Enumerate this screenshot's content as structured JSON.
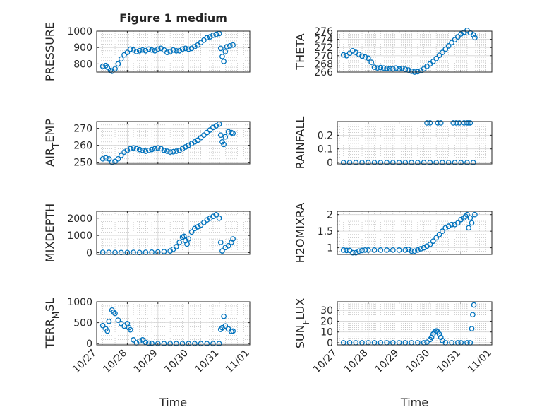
{
  "figure": {
    "title": "Figure 1 medium",
    "colors": {
      "marker": "#0072BD",
      "axis": "#262626",
      "grid": "#b3b3b3",
      "background": "#ffffff"
    }
  },
  "chart_data": [
    {
      "id": "pressure",
      "type": "scatter",
      "title": "Figure 1 medium",
      "ylabel": "PRESSURE",
      "xlabel": "",
      "grid": true,
      "minor_grid": true,
      "x_range": [
        "10/27",
        "11/01"
      ],
      "ylim": [
        750,
        1000
      ],
      "y_ticks": [
        800,
        900,
        1000
      ],
      "x_ticks": [],
      "points": [
        [
          27.2,
          785
        ],
        [
          27.3,
          790
        ],
        [
          27.35,
          780
        ],
        [
          27.45,
          760
        ],
        [
          27.5,
          755
        ],
        [
          27.6,
          770
        ],
        [
          27.7,
          800
        ],
        [
          27.8,
          830
        ],
        [
          27.9,
          855
        ],
        [
          28.0,
          870
        ],
        [
          28.1,
          890
        ],
        [
          28.2,
          885
        ],
        [
          28.3,
          875
        ],
        [
          28.4,
          880
        ],
        [
          28.5,
          885
        ],
        [
          28.6,
          880
        ],
        [
          28.7,
          890
        ],
        [
          28.8,
          885
        ],
        [
          28.9,
          880
        ],
        [
          29.0,
          890
        ],
        [
          29.1,
          895
        ],
        [
          29.2,
          885
        ],
        [
          29.3,
          870
        ],
        [
          29.4,
          875
        ],
        [
          29.5,
          885
        ],
        [
          29.6,
          880
        ],
        [
          29.7,
          880
        ],
        [
          29.8,
          890
        ],
        [
          29.9,
          895
        ],
        [
          30.0,
          890
        ],
        [
          30.1,
          895
        ],
        [
          30.2,
          905
        ],
        [
          30.3,
          915
        ],
        [
          30.4,
          930
        ],
        [
          30.5,
          945
        ],
        [
          30.6,
          960
        ],
        [
          30.7,
          965
        ],
        [
          30.8,
          975
        ],
        [
          30.9,
          980
        ],
        [
          31.0,
          985
        ],
        [
          31.05,
          895
        ],
        [
          31.1,
          845
        ],
        [
          31.15,
          815
        ],
        [
          31.2,
          875
        ],
        [
          31.25,
          905
        ],
        [
          31.35,
          910
        ],
        [
          31.45,
          915
        ]
      ]
    },
    {
      "id": "theta",
      "type": "scatter",
      "ylabel": "THETA",
      "xlabel": "",
      "grid": true,
      "minor_grid": true,
      "x_range": [
        "10/27",
        "11/01"
      ],
      "ylim": [
        266,
        276
      ],
      "y_ticks": [
        266,
        268,
        270,
        272,
        274,
        276
      ],
      "x_ticks": [],
      "points": [
        [
          27.2,
          270.2
        ],
        [
          27.3,
          270.0
        ],
        [
          27.4,
          270.6
        ],
        [
          27.5,
          271.2
        ],
        [
          27.6,
          270.8
        ],
        [
          27.7,
          270.3
        ],
        [
          27.8,
          269.9
        ],
        [
          27.9,
          269.7
        ],
        [
          28.0,
          269.4
        ],
        [
          28.1,
          268.4
        ],
        [
          28.2,
          267.2
        ],
        [
          28.3,
          267.0
        ],
        [
          28.4,
          267.1
        ],
        [
          28.5,
          267.0
        ],
        [
          28.6,
          266.9
        ],
        [
          28.7,
          266.8
        ],
        [
          28.8,
          266.8
        ],
        [
          28.9,
          267.0
        ],
        [
          29.0,
          266.8
        ],
        [
          29.1,
          266.9
        ],
        [
          29.2,
          266.7
        ],
        [
          29.3,
          266.5
        ],
        [
          29.4,
          266.2
        ],
        [
          29.5,
          266.0
        ],
        [
          29.6,
          266.1
        ],
        [
          29.7,
          266.3
        ],
        [
          29.8,
          266.8
        ],
        [
          29.9,
          267.4
        ],
        [
          30.0,
          268.0
        ],
        [
          30.1,
          268.6
        ],
        [
          30.2,
          269.3
        ],
        [
          30.3,
          270.1
        ],
        [
          30.4,
          270.8
        ],
        [
          30.5,
          271.6
        ],
        [
          30.6,
          272.4
        ],
        [
          30.7,
          273.2
        ],
        [
          30.8,
          273.9
        ],
        [
          30.9,
          274.6
        ],
        [
          31.0,
          275.3
        ],
        [
          31.1,
          275.7
        ],
        [
          31.2,
          276.2
        ],
        [
          31.3,
          275.6
        ],
        [
          31.4,
          275.1
        ],
        [
          31.45,
          274.4
        ]
      ]
    },
    {
      "id": "air_temp",
      "type": "scatter",
      "ylabel": "AIR_TEMP",
      "xlabel": "",
      "grid": true,
      "minor_grid": true,
      "x_range": [
        "10/27",
        "11/01"
      ],
      "ylim": [
        249,
        274
      ],
      "y_ticks": [
        250,
        260,
        270
      ],
      "x_ticks": [],
      "points": [
        [
          27.2,
          252.0
        ],
        [
          27.3,
          252.5
        ],
        [
          27.4,
          252.0
        ],
        [
          27.5,
          250.0
        ],
        [
          27.6,
          250.5
        ],
        [
          27.7,
          252.0
        ],
        [
          27.8,
          254.0
        ],
        [
          27.9,
          256.0
        ],
        [
          28.0,
          257.0
        ],
        [
          28.1,
          258.0
        ],
        [
          28.2,
          258.5
        ],
        [
          28.3,
          258.0
        ],
        [
          28.4,
          257.5
        ],
        [
          28.5,
          257.0
        ],
        [
          28.6,
          256.5
        ],
        [
          28.7,
          257.0
        ],
        [
          28.8,
          257.5
        ],
        [
          28.9,
          258.0
        ],
        [
          29.0,
          258.5
        ],
        [
          29.1,
          258.0
        ],
        [
          29.2,
          257.0
        ],
        [
          29.3,
          256.5
        ],
        [
          29.4,
          256.0
        ],
        [
          29.5,
          256.2
        ],
        [
          29.6,
          256.5
        ],
        [
          29.7,
          257.0
        ],
        [
          29.8,
          258.0
        ],
        [
          29.9,
          259.0
        ],
        [
          30.0,
          260.0
        ],
        [
          30.1,
          261.0
        ],
        [
          30.2,
          262.0
        ],
        [
          30.3,
          263.0
        ],
        [
          30.4,
          264.5
        ],
        [
          30.5,
          266.0
        ],
        [
          30.6,
          267.5
        ],
        [
          30.7,
          269.0
        ],
        [
          30.8,
          270.5
        ],
        [
          30.9,
          271.5
        ],
        [
          31.0,
          272.5
        ],
        [
          31.05,
          266.0
        ],
        [
          31.1,
          262.0
        ],
        [
          31.15,
          260.5
        ],
        [
          31.2,
          265.0
        ],
        [
          31.3,
          268.0
        ],
        [
          31.4,
          267.5
        ],
        [
          31.45,
          267.0
        ]
      ]
    },
    {
      "id": "rainfall",
      "type": "scatter",
      "ylabel": "RAINFALL",
      "xlabel": "",
      "grid": true,
      "minor_grid": true,
      "x_range": [
        "10/27",
        "11/01"
      ],
      "ylim": [
        -0.01,
        0.3
      ],
      "y_ticks": [
        0,
        0.1,
        0.2
      ],
      "x_ticks": [],
      "points": [
        [
          27.2,
          0
        ],
        [
          27.4,
          0
        ],
        [
          27.6,
          0
        ],
        [
          27.8,
          0
        ],
        [
          28.0,
          0
        ],
        [
          28.2,
          0
        ],
        [
          28.4,
          0
        ],
        [
          28.6,
          0
        ],
        [
          28.8,
          0
        ],
        [
          29.0,
          0
        ],
        [
          29.2,
          0
        ],
        [
          29.4,
          0
        ],
        [
          29.6,
          0
        ],
        [
          29.8,
          0
        ],
        [
          30.0,
          0
        ],
        [
          30.2,
          0
        ],
        [
          30.4,
          0
        ],
        [
          30.6,
          0
        ],
        [
          30.8,
          0
        ],
        [
          31.0,
          0
        ],
        [
          31.2,
          0
        ],
        [
          31.4,
          0
        ],
        [
          29.9,
          0.29
        ],
        [
          30.0,
          0.29
        ],
        [
          30.25,
          0.29
        ],
        [
          30.35,
          0.29
        ],
        [
          30.75,
          0.29
        ],
        [
          30.85,
          0.29
        ],
        [
          30.95,
          0.29
        ],
        [
          31.1,
          0.29
        ],
        [
          31.2,
          0.29
        ],
        [
          31.25,
          0.29
        ],
        [
          31.3,
          0.29
        ]
      ]
    },
    {
      "id": "mixdepth",
      "type": "scatter",
      "ylabel": "MIXDEPTH",
      "xlabel": "",
      "grid": true,
      "minor_grid": true,
      "x_range": [
        "10/27",
        "11/01"
      ],
      "ylim": [
        -100,
        2400
      ],
      "y_ticks": [
        0,
        1000,
        2000
      ],
      "x_ticks": [],
      "points": [
        [
          27.2,
          20
        ],
        [
          27.4,
          20
        ],
        [
          27.6,
          10
        ],
        [
          27.8,
          10
        ],
        [
          28.0,
          10
        ],
        [
          28.2,
          20
        ],
        [
          28.4,
          10
        ],
        [
          28.6,
          20
        ],
        [
          28.8,
          30
        ],
        [
          29.0,
          40
        ],
        [
          29.2,
          60
        ],
        [
          29.4,
          100
        ],
        [
          29.5,
          200
        ],
        [
          29.6,
          350
        ],
        [
          29.7,
          600
        ],
        [
          29.8,
          900
        ],
        [
          29.85,
          950
        ],
        [
          29.9,
          700
        ],
        [
          29.95,
          500
        ],
        [
          30.0,
          800
        ],
        [
          30.1,
          1200
        ],
        [
          30.2,
          1400
        ],
        [
          30.3,
          1500
        ],
        [
          30.4,
          1600
        ],
        [
          30.5,
          1750
        ],
        [
          30.6,
          1900
        ],
        [
          30.7,
          2000
        ],
        [
          30.8,
          2100
        ],
        [
          30.9,
          2200
        ],
        [
          31.0,
          2000
        ],
        [
          31.05,
          600
        ],
        [
          31.1,
          100
        ],
        [
          31.2,
          300
        ],
        [
          31.3,
          400
        ],
        [
          31.4,
          600
        ],
        [
          31.45,
          800
        ]
      ]
    },
    {
      "id": "h2omixra",
      "type": "scatter",
      "ylabel": "H2OMIXRA",
      "xlabel": "",
      "grid": true,
      "minor_grid": true,
      "x_range": [
        "10/27",
        "11/01"
      ],
      "ylim": [
        0.8,
        2.1
      ],
      "y_ticks": [
        1,
        1.5,
        2
      ],
      "x_ticks": [],
      "points": [
        [
          27.2,
          0.93
        ],
        [
          27.3,
          0.92
        ],
        [
          27.4,
          0.92
        ],
        [
          27.5,
          0.85
        ],
        [
          27.6,
          0.85
        ],
        [
          27.7,
          0.9
        ],
        [
          27.8,
          0.92
        ],
        [
          27.9,
          0.93
        ],
        [
          28.0,
          0.93
        ],
        [
          28.2,
          0.93
        ],
        [
          28.4,
          0.93
        ],
        [
          28.6,
          0.93
        ],
        [
          28.8,
          0.93
        ],
        [
          29.0,
          0.93
        ],
        [
          29.2,
          0.93
        ],
        [
          29.3,
          0.95
        ],
        [
          29.4,
          0.9
        ],
        [
          29.5,
          0.9
        ],
        [
          29.6,
          0.93
        ],
        [
          29.7,
          0.97
        ],
        [
          29.8,
          1.0
        ],
        [
          29.9,
          1.05
        ],
        [
          30.0,
          1.1
        ],
        [
          30.1,
          1.2
        ],
        [
          30.2,
          1.3
        ],
        [
          30.3,
          1.4
        ],
        [
          30.4,
          1.5
        ],
        [
          30.5,
          1.6
        ],
        [
          30.6,
          1.65
        ],
        [
          30.7,
          1.7
        ],
        [
          30.8,
          1.7
        ],
        [
          30.9,
          1.75
        ],
        [
          31.0,
          1.85
        ],
        [
          31.1,
          1.9
        ],
        [
          31.15,
          1.95
        ],
        [
          31.2,
          2.0
        ],
        [
          31.25,
          1.6
        ],
        [
          31.3,
          1.9
        ],
        [
          31.35,
          1.75
        ],
        [
          31.45,
          2.0
        ]
      ]
    },
    {
      "id": "terr_msl",
      "type": "scatter",
      "ylabel": "TERR_MSL",
      "xlabel": "Time",
      "grid": true,
      "minor_grid": true,
      "x_range": [
        "10/27",
        "11/01"
      ],
      "ylim": [
        -30,
        1000
      ],
      "y_ticks": [
        0,
        500,
        1000
      ],
      "x_ticks": [
        "10/27",
        "10/28",
        "10/29",
        "10/30",
        "10/31",
        "11/01"
      ],
      "points": [
        [
          27.2,
          430
        ],
        [
          27.3,
          350
        ],
        [
          27.35,
          300
        ],
        [
          27.4,
          530
        ],
        [
          27.5,
          800
        ],
        [
          27.55,
          750
        ],
        [
          27.6,
          720
        ],
        [
          27.7,
          560
        ],
        [
          27.8,
          480
        ],
        [
          27.9,
          420
        ],
        [
          28.0,
          480
        ],
        [
          28.05,
          380
        ],
        [
          28.1,
          330
        ],
        [
          28.2,
          90
        ],
        [
          28.3,
          20
        ],
        [
          28.4,
          60
        ],
        [
          28.5,
          90
        ],
        [
          28.6,
          30
        ],
        [
          28.7,
          10
        ],
        [
          28.8,
          5
        ],
        [
          29.0,
          0
        ],
        [
          29.2,
          0
        ],
        [
          29.4,
          0
        ],
        [
          29.6,
          0
        ],
        [
          29.8,
          0
        ],
        [
          30.0,
          0
        ],
        [
          30.2,
          0
        ],
        [
          30.4,
          0
        ],
        [
          30.6,
          0
        ],
        [
          30.8,
          0
        ],
        [
          31.0,
          0
        ],
        [
          31.05,
          340
        ],
        [
          31.1,
          380
        ],
        [
          31.15,
          650
        ],
        [
          31.2,
          420
        ],
        [
          31.3,
          350
        ],
        [
          31.4,
          290
        ],
        [
          31.45,
          300
        ]
      ]
    },
    {
      "id": "sun_flux",
      "type": "scatter",
      "ylabel": "SUN_FLUX",
      "xlabel": "Time",
      "grid": true,
      "minor_grid": true,
      "x_range": [
        "10/27",
        "11/01"
      ],
      "ylim": [
        -2,
        38
      ],
      "y_ticks": [
        0,
        10,
        20,
        30
      ],
      "x_ticks": [
        "10/27",
        "10/28",
        "10/29",
        "10/30",
        "10/31",
        "11/01"
      ],
      "points": [
        [
          27.2,
          0
        ],
        [
          27.4,
          0
        ],
        [
          27.6,
          0
        ],
        [
          27.8,
          0
        ],
        [
          28.0,
          0
        ],
        [
          28.2,
          0
        ],
        [
          28.4,
          0
        ],
        [
          28.6,
          0
        ],
        [
          28.8,
          0
        ],
        [
          29.0,
          0
        ],
        [
          29.2,
          0
        ],
        [
          29.4,
          0
        ],
        [
          29.6,
          0
        ],
        [
          29.8,
          0
        ],
        [
          29.9,
          0.5
        ],
        [
          30.0,
          3
        ],
        [
          30.05,
          5
        ],
        [
          30.1,
          8
        ],
        [
          30.15,
          10
        ],
        [
          30.2,
          11
        ],
        [
          30.25,
          10
        ],
        [
          30.3,
          8
        ],
        [
          30.35,
          5
        ],
        [
          30.4,
          2
        ],
        [
          30.5,
          0
        ],
        [
          30.7,
          0
        ],
        [
          30.9,
          0
        ],
        [
          31.0,
          0
        ],
        [
          31.2,
          0
        ],
        [
          31.3,
          0
        ],
        [
          31.35,
          13
        ],
        [
          31.38,
          26
        ],
        [
          31.42,
          35
        ]
      ]
    }
  ]
}
